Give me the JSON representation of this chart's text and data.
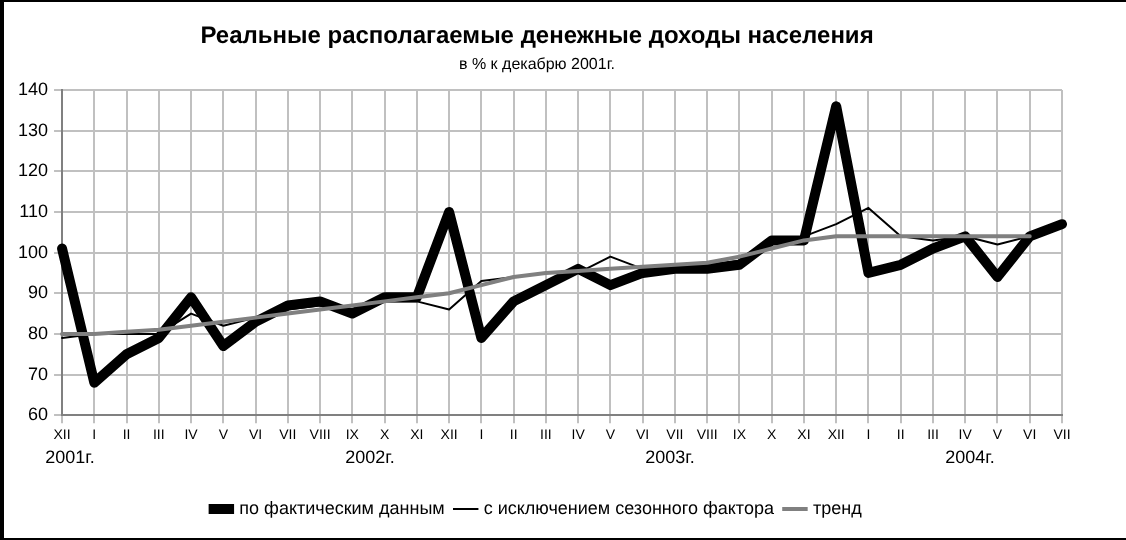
{
  "chart_data": {
    "type": "line",
    "title": "Реальные располагаемые денежные доходы населения",
    "subtitle": "в % к декабрю 2001г.",
    "categories": [
      "XII",
      "I",
      "II",
      "III",
      "IV",
      "V",
      "VI",
      "VII",
      "VIII",
      "IX",
      "X",
      "XI",
      "XII",
      "I",
      "II",
      "III",
      "IV",
      "V",
      "VI",
      "VII",
      "VIII",
      "IX",
      "X",
      "XI",
      "XII",
      "I",
      "II",
      "III",
      "IV",
      "V",
      "VI",
      "VII"
    ],
    "series": [
      {
        "name": "по фактическим данным",
        "color": "#000000",
        "values": [
          101,
          68,
          75,
          79,
          89,
          77,
          83,
          87,
          88,
          85,
          89,
          89,
          110,
          79,
          88,
          92,
          96,
          92,
          95,
          96,
          96,
          97,
          103,
          103,
          136,
          95,
          97,
          101,
          104,
          94,
          104,
          107
        ]
      },
      {
        "name": "с исключением сезонного фактора",
        "color": "#000000",
        "values": [
          79,
          80,
          80,
          80,
          85,
          82,
          84,
          86,
          87,
          86,
          88,
          88,
          86,
          93,
          94,
          95,
          95,
          99,
          96,
          97,
          97,
          98,
          102,
          104,
          107,
          111,
          104,
          103,
          104,
          102,
          104,
          107
        ]
      },
      {
        "name": "тренд",
        "color": "#808080",
        "values": [
          80,
          80,
          80.5,
          81,
          82,
          83,
          84,
          85,
          86,
          87,
          88,
          89,
          90,
          92,
          94,
          95,
          95.5,
          96,
          96.5,
          97,
          97.5,
          99,
          101,
          103,
          104,
          104,
          104,
          104,
          104,
          104,
          104,
          null
        ]
      }
    ],
    "ylim": [
      60,
      140
    ],
    "yticks": [
      60,
      70,
      80,
      90,
      100,
      110,
      120,
      130,
      140
    ],
    "grid": true,
    "legend": "bottom",
    "marker": "none",
    "line_style": "solid",
    "annotations": [
      "2001г.",
      "2002г.",
      "2003г.",
      "2004г."
    ]
  }
}
